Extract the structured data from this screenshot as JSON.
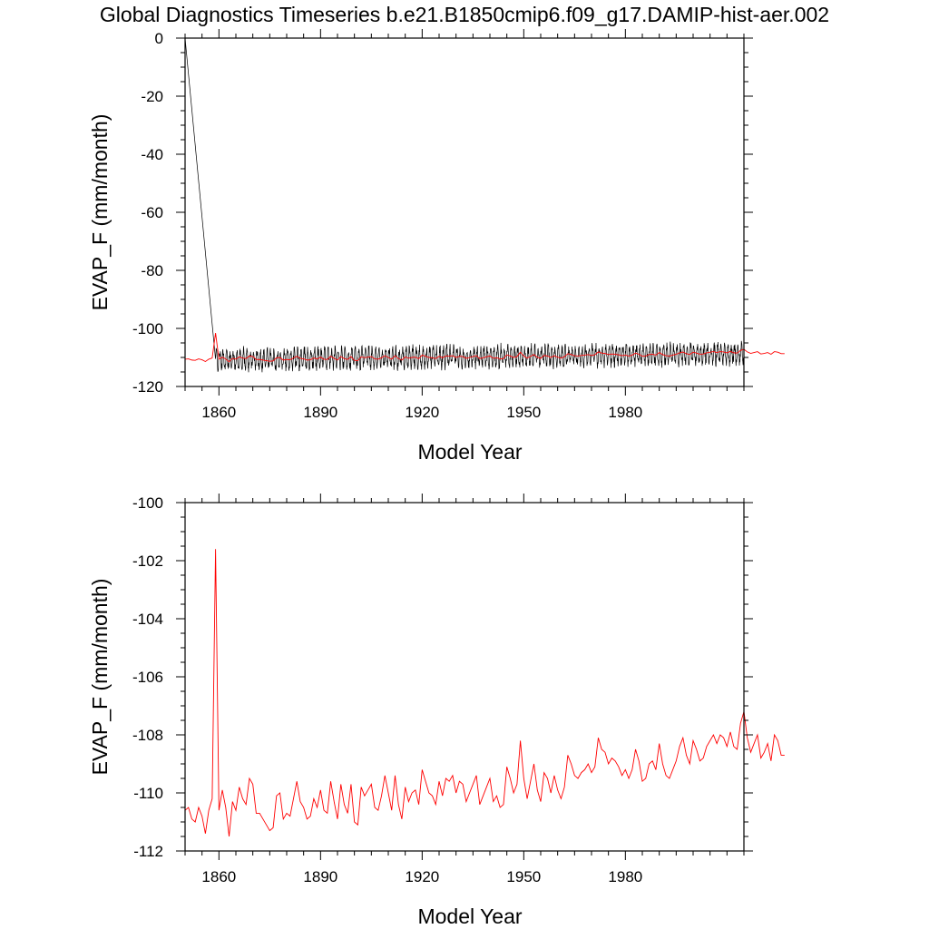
{
  "title": "Global Diagnostics Timeseries b.e21.B1850cmip6.f09_g17.DAMIP-hist-aer.002",
  "colors": {
    "monthly": "#000000",
    "annual": "#ff0000"
  },
  "chart_data": [
    {
      "type": "line",
      "xlabel": "Model Year",
      "ylabel": "EVAP_F (mm/month)",
      "xlim": [
        1850,
        2015
      ],
      "ylim": [
        -120,
        0
      ],
      "xticks": [
        1860,
        1890,
        1920,
        1950,
        1980
      ],
      "yticks": [
        0,
        -20,
        -40,
        -60,
        -80,
        -100,
        -120
      ],
      "ytick_labels": [
        "0",
        "-20",
        "-40",
        "-60",
        "-80",
        "-100",
        "-120"
      ],
      "series": [
        {
          "color": "#000000",
          "description_of_values": "monthly values: starts at 0 in 1850, drops to about -110 by 1859, then oscillates roughly between -115 and -104 through 2014",
          "start": 0,
          "mean_start": -110.8,
          "mean_end": -108.6,
          "amplitude": 3.6
        },
        {
          "color": "#ff0000",
          "description_of_values": "annual mean (same as lower panel)",
          "ref": "annual"
        }
      ]
    },
    {
      "type": "line",
      "xlabel": "Model Year",
      "ylabel": "EVAP_F (mm/month)",
      "xlim": [
        1850,
        2015
      ],
      "ylim": [
        -112,
        -100
      ],
      "xticks": [
        1860,
        1890,
        1920,
        1950,
        1980
      ],
      "yticks": [
        -100,
        -102,
        -104,
        -106,
        -108,
        -110,
        -112
      ],
      "ytick_labels": [
        "-100",
        "-102",
        "-104",
        "-106",
        "-108",
        "-110",
        "-112"
      ],
      "series": [
        {
          "id": "annual",
          "color": "#ff0000",
          "x_start": 1850,
          "x_step": 1,
          "values": [
            -110.6,
            -110.5,
            -110.9,
            -111.0,
            -110.5,
            -110.8,
            -111.4,
            -110.6,
            -110.2,
            -101.6,
            -110.6,
            -109.9,
            -110.5,
            -111.5,
            -110.3,
            -110.6,
            -109.8,
            -110.2,
            -110.4,
            -109.5,
            -109.7,
            -110.7,
            -110.7,
            -110.9,
            -111.1,
            -111.3,
            -111.2,
            -110.1,
            -110.0,
            -110.9,
            -110.7,
            -110.8,
            -110.2,
            -109.6,
            -110.3,
            -110.5,
            -110.9,
            -110.8,
            -110.2,
            -110.5,
            -109.9,
            -110.6,
            -110.7,
            -109.6,
            -110.3,
            -110.9,
            -109.7,
            -110.4,
            -110.7,
            -109.7,
            -111.0,
            -111.1,
            -109.8,
            -110.1,
            -109.9,
            -109.7,
            -110.5,
            -110.6,
            -110.1,
            -109.4,
            -110.0,
            -110.6,
            -109.4,
            -110.4,
            -110.9,
            -109.8,
            -110.3,
            -110.0,
            -109.9,
            -110.4,
            -109.2,
            -109.6,
            -110.0,
            -110.1,
            -110.4,
            -109.6,
            -110.1,
            -109.5,
            -109.6,
            -109.4,
            -110.0,
            -109.6,
            -109.7,
            -110.3,
            -110.0,
            -109.7,
            -109.4,
            -110.4,
            -110.1,
            -109.8,
            -109.5,
            -110.3,
            -110.1,
            -110.5,
            -110.4,
            -109.1,
            -109.5,
            -110.0,
            -109.7,
            -108.2,
            -109.5,
            -110.2,
            -109.6,
            -109.0,
            -109.9,
            -110.3,
            -109.3,
            -109.5,
            -110.0,
            -109.4,
            -109.9,
            -110.2,
            -109.8,
            -108.7,
            -109.0,
            -109.4,
            -109.5,
            -109.3,
            -109.2,
            -109.0,
            -109.3,
            -109.1,
            -108.1,
            -108.5,
            -108.6,
            -109.0,
            -108.8,
            -108.9,
            -109.1,
            -109.4,
            -109.2,
            -109.5,
            -109.2,
            -108.5,
            -108.9,
            -109.6,
            -109.5,
            -109.0,
            -108.9,
            -109.2,
            -108.3,
            -109.0,
            -109.4,
            -109.5,
            -109.2,
            -108.9,
            -108.4,
            -108.1,
            -108.7,
            -109.0,
            -108.2,
            -108.5,
            -108.9,
            -108.8,
            -108.4,
            -108.2,
            -108.0,
            -108.3,
            -108.0,
            -108.1,
            -108.4,
            -107.9,
            -108.4,
            -108.5,
            -107.6,
            -107.2,
            -108.1,
            -108.6,
            -108.3,
            -108.0,
            -108.8,
            -108.6,
            -108.3,
            -108.9,
            -108.0,
            -108.2,
            -108.7,
            -108.7
          ]
        }
      ]
    }
  ]
}
